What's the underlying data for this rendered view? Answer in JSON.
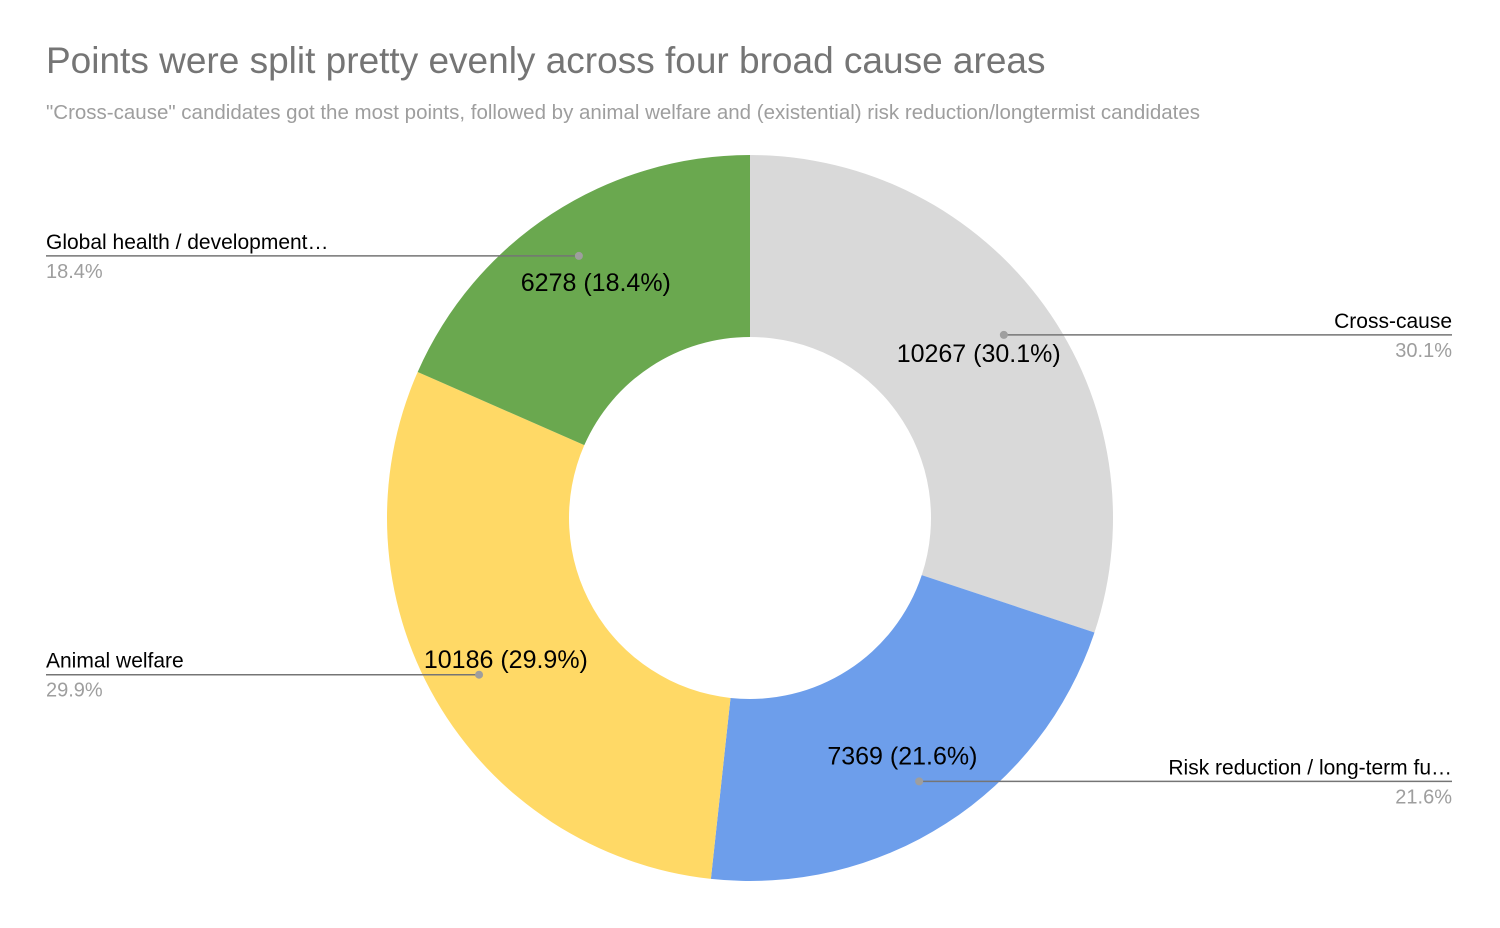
{
  "chart_data": {
    "type": "pie",
    "donut": true,
    "title": "Points were split pretty evenly across four broad cause areas",
    "subtitle": "\"Cross-cause\" candidates got the most points, followed by animal welfare and (existential) risk reduction/longtermist candidates",
    "legend": "callout-labels",
    "slices": [
      {
        "label": "Cross-cause",
        "value": 10267,
        "percent_label": "30.1%",
        "data_label": "10267 (30.1%)",
        "color": "#d9d9d9"
      },
      {
        "label": "Risk reduction / long-term fu…",
        "value": 7369,
        "percent_label": "21.6%",
        "data_label": "7369 (21.6%)",
        "color": "#6d9eeb"
      },
      {
        "label": "Animal welfare",
        "value": 10186,
        "percent_label": "29.9%",
        "data_label": "10186 (29.9%)",
        "color": "#ffd966"
      },
      {
        "label": "Global health / development…",
        "value": 6278,
        "percent_label": "18.4%",
        "data_label": "6278 (18.4%)",
        "color": "#6aa84f"
      }
    ]
  }
}
